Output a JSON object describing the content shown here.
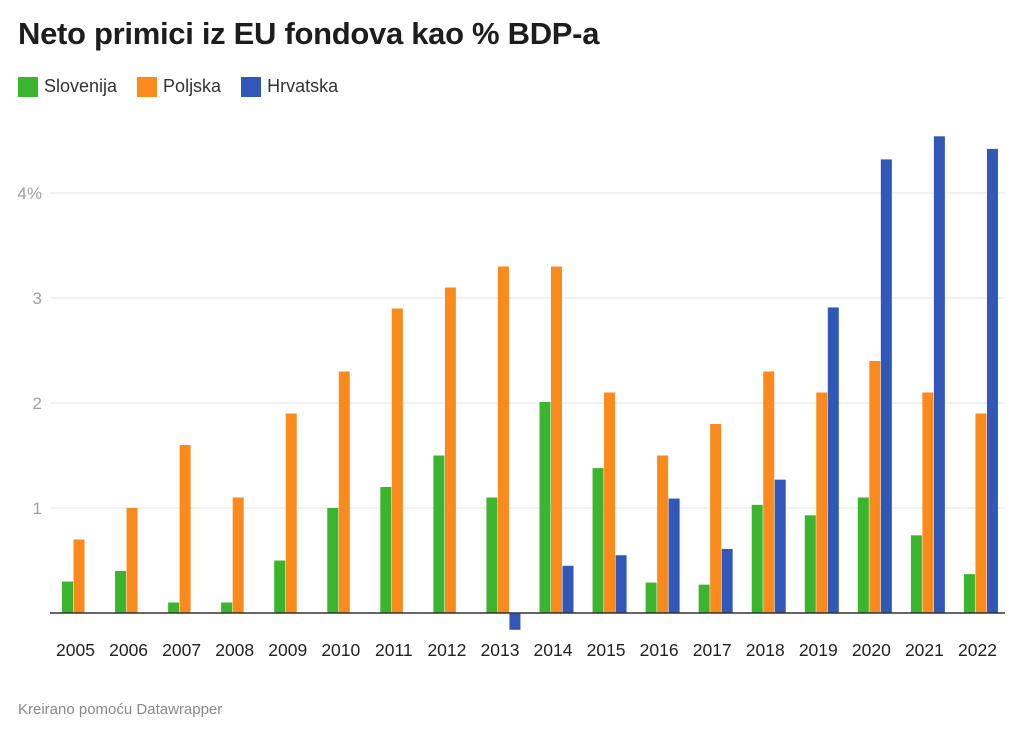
{
  "title": "Neto primici iz EU fondova kao % BDP-a",
  "footer": "Kreirano pomoću Datawrapper",
  "chart_data": {
    "type": "bar",
    "title": "Neto primici iz EU fondova kao % BDP-a",
    "xlabel": "",
    "ylabel": "",
    "ylim": [
      -0.2,
      4.6
    ],
    "yticks": [
      {
        "value": 1,
        "label": "1"
      },
      {
        "value": 2,
        "label": "2"
      },
      {
        "value": 3,
        "label": "3"
      },
      {
        "value": 4,
        "label": "4%"
      }
    ],
    "grid": true,
    "legend_position": "top-left",
    "categories": [
      "2005",
      "2006",
      "2007",
      "2008",
      "2009",
      "2010",
      "2011",
      "2012",
      "2013",
      "2014",
      "2015",
      "2016",
      "2017",
      "2018",
      "2019",
      "2020",
      "2021",
      "2022"
    ],
    "series": [
      {
        "name": "Slovenija",
        "color": "#3bb52d",
        "values": [
          0.3,
          0.4,
          0.1,
          0.1,
          0.5,
          1.0,
          1.2,
          1.5,
          1.1,
          2.01,
          1.38,
          0.29,
          0.27,
          1.03,
          0.93,
          1.1,
          0.74,
          0.37
        ]
      },
      {
        "name": "Poljska",
        "color": "#fb8a1d",
        "values": [
          0.7,
          1.0,
          1.6,
          1.1,
          1.9,
          2.3,
          2.9,
          3.1,
          3.3,
          3.3,
          2.1,
          1.5,
          1.8,
          2.3,
          2.1,
          2.4,
          2.1,
          1.9
        ]
      },
      {
        "name": "Hrvatska",
        "color": "#3158b8",
        "values": [
          null,
          null,
          null,
          null,
          null,
          null,
          null,
          null,
          -0.16,
          0.45,
          0.55,
          1.09,
          0.61,
          1.27,
          2.91,
          4.32,
          4.54,
          4.42
        ]
      }
    ]
  }
}
